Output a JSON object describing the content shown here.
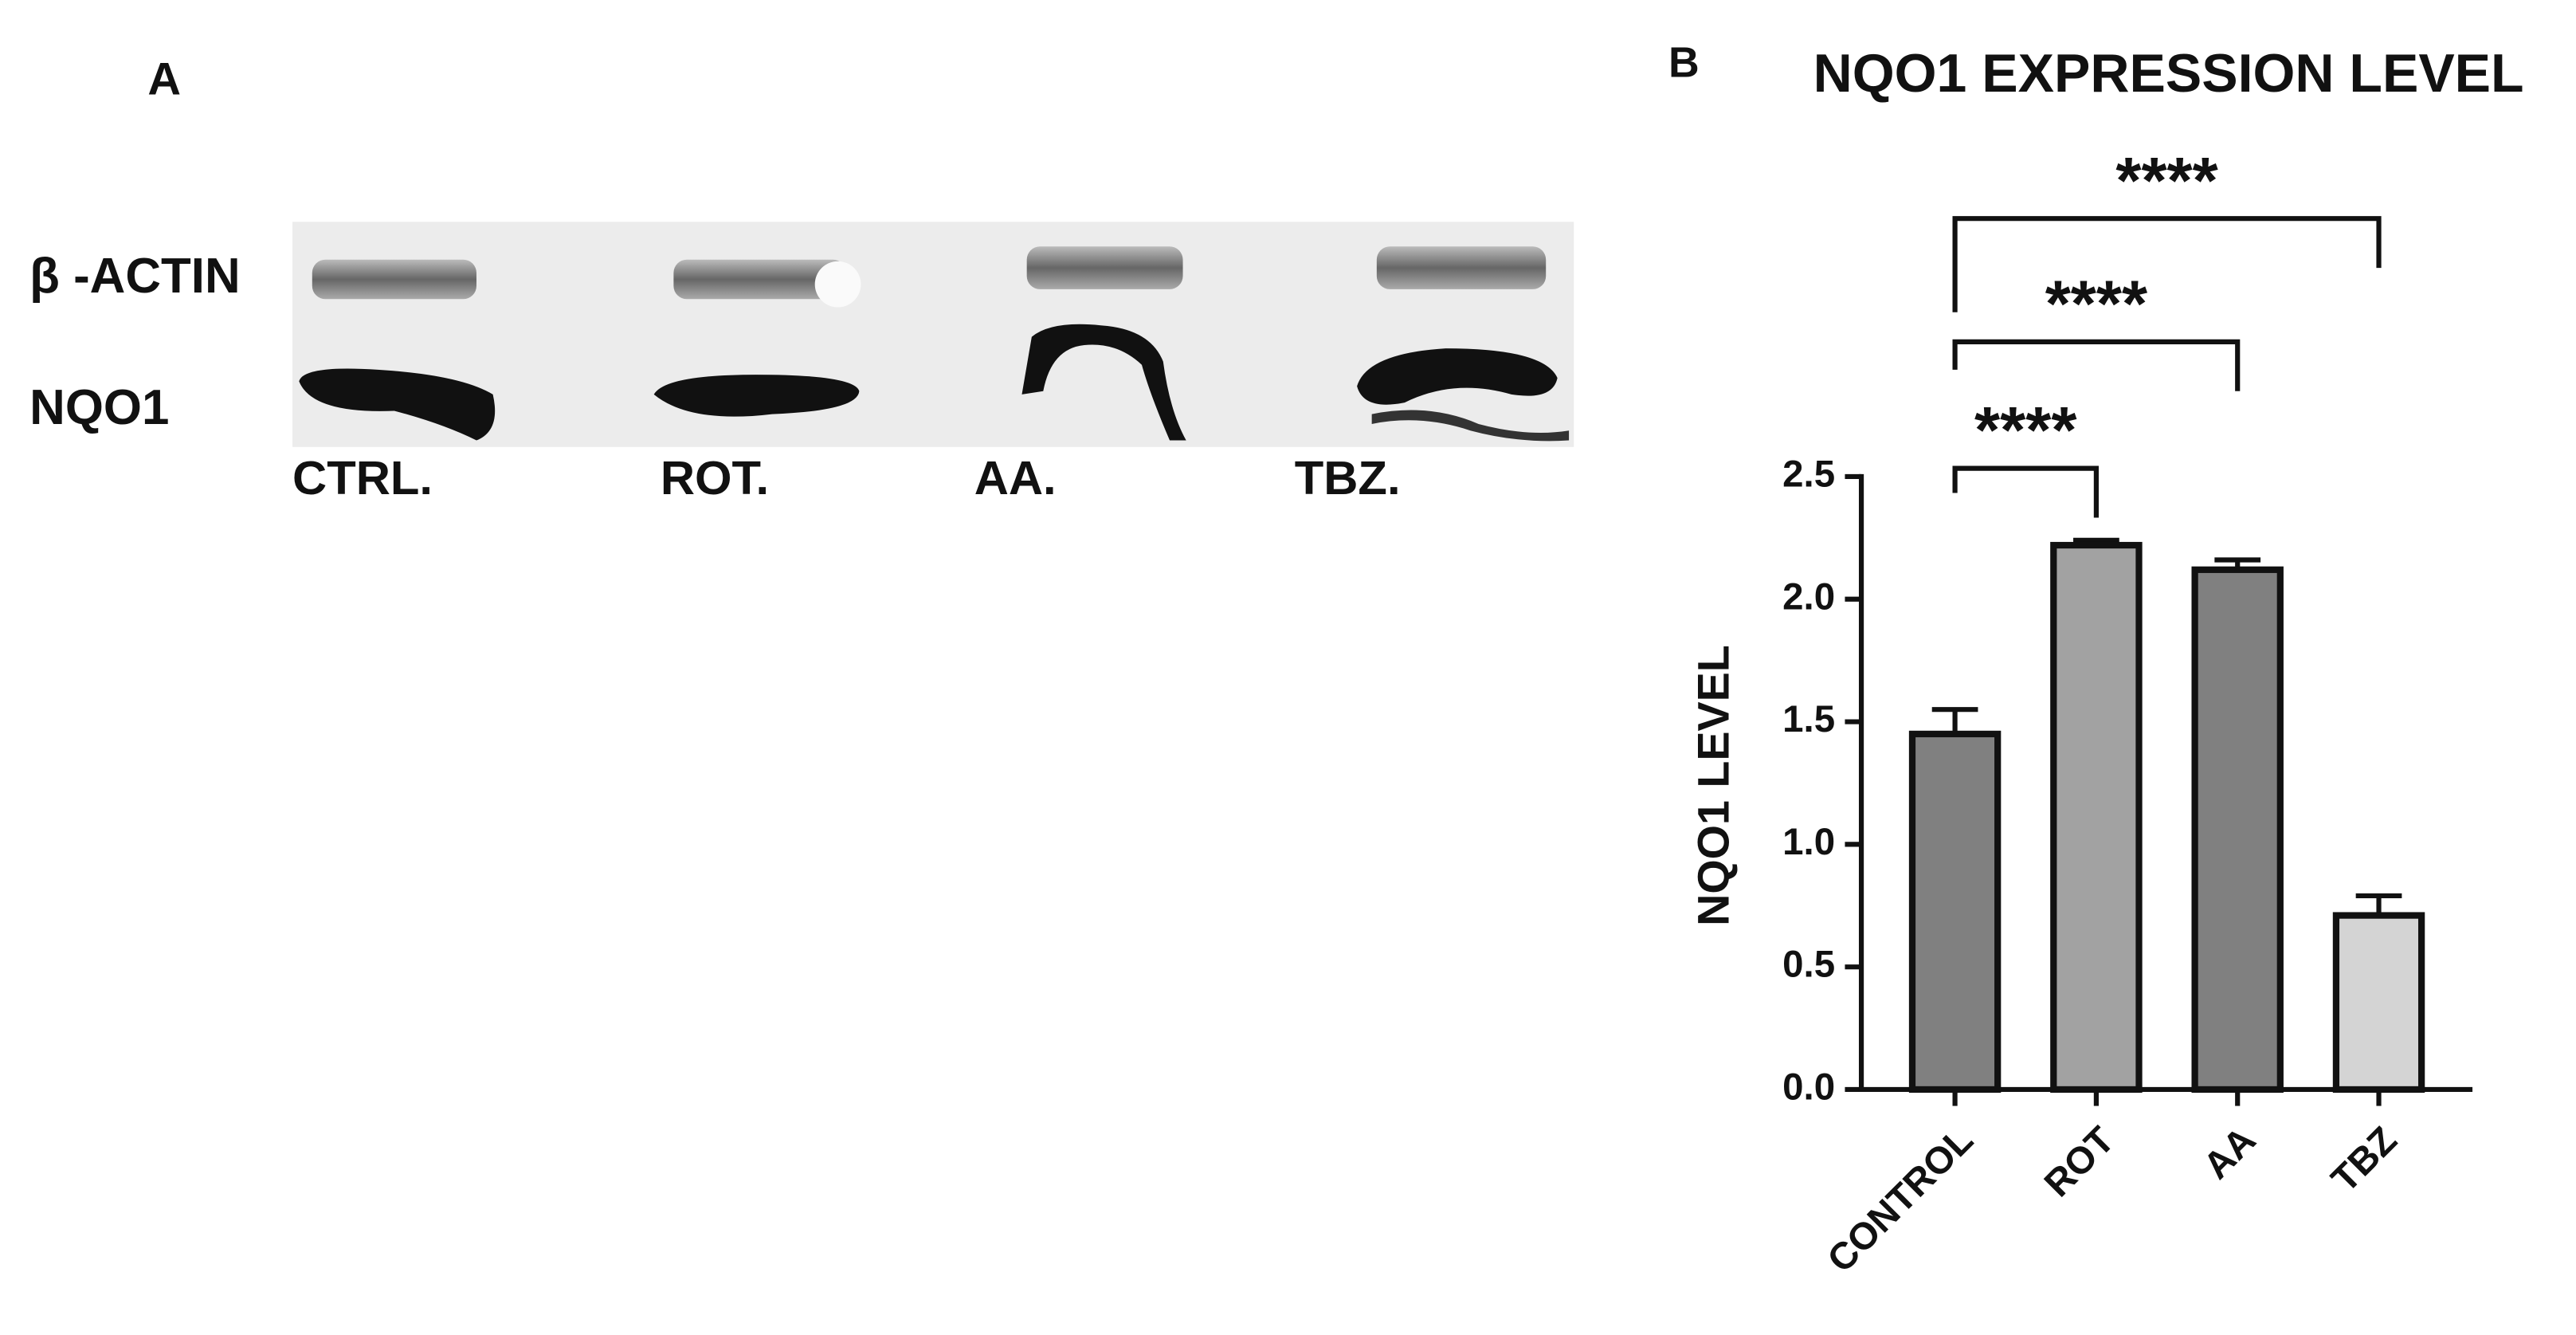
{
  "panel_a": {
    "label": "A",
    "row_labels": [
      "β -ACTIN",
      "NQO1"
    ],
    "lane_labels": [
      "CTRL.",
      "ROT.",
      "AA.",
      "TBZ."
    ]
  },
  "chart_data": {
    "type": "bar",
    "panel_label": "B",
    "title": "NQO1 EXPRESSION LEVEL",
    "ylabel": "NQO1 LEVEL",
    "categories": [
      "CONTROL",
      "ROT",
      "AA",
      "TBZ"
    ],
    "values": [
      1.45,
      2.22,
      2.12,
      0.71
    ],
    "errors": [
      0.1,
      0.02,
      0.04,
      0.08
    ],
    "colors": [
      "#808080",
      "#a2a2a2",
      "#808080",
      "#d4d4d4"
    ],
    "ylim": [
      0,
      2.5
    ],
    "yticks": [
      {
        "value": 0,
        "label": "0.0"
      },
      {
        "value": 0.5,
        "label": "0.5"
      },
      {
        "value": 1,
        "label": "1.0"
      },
      {
        "value": 1.5,
        "label": "1.5"
      },
      {
        "value": 2,
        "label": "2.0"
      },
      {
        "value": 2.5,
        "label": "2.5"
      }
    ],
    "annotations": [
      "****",
      "****",
      "****"
    ]
  }
}
